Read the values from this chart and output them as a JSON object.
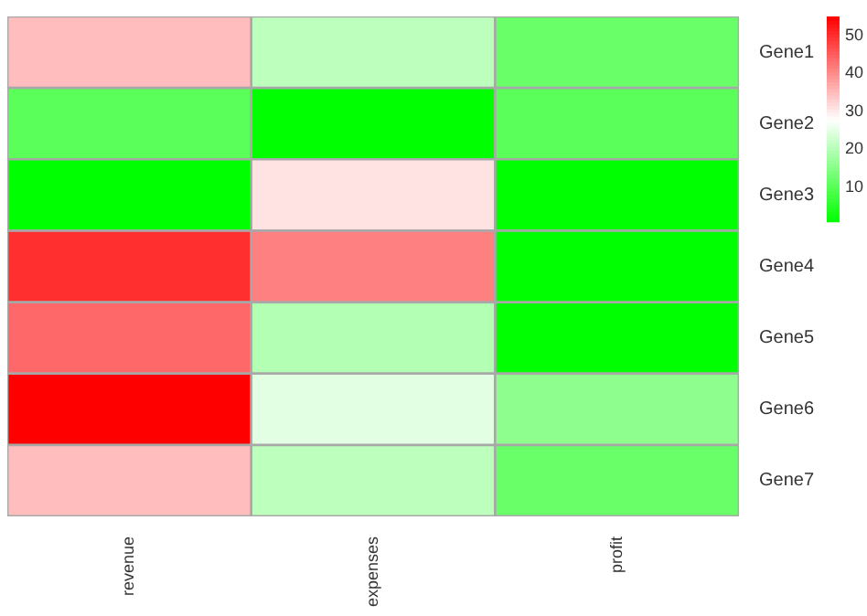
{
  "chart_data": {
    "type": "heatmap",
    "categories": [
      "revenue",
      "expenses",
      "profit"
    ],
    "y_categories": [
      "Gene1",
      "Gene2",
      "Gene3",
      "Gene4",
      "Gene5",
      "Gene6",
      "Gene7"
    ],
    "cells": [
      [
        35,
        21,
        12
      ],
      [
        10.5,
        1,
        10.5
      ],
      [
        1,
        31,
        1
      ],
      [
        50,
        41.5,
        1
      ],
      [
        44,
        20,
        1
      ],
      [
        55,
        25,
        16
      ],
      [
        35,
        21,
        12
      ]
    ],
    "clim": [
      1,
      55
    ],
    "cticks": [
      10,
      20,
      30,
      40,
      50
    ]
  }
}
